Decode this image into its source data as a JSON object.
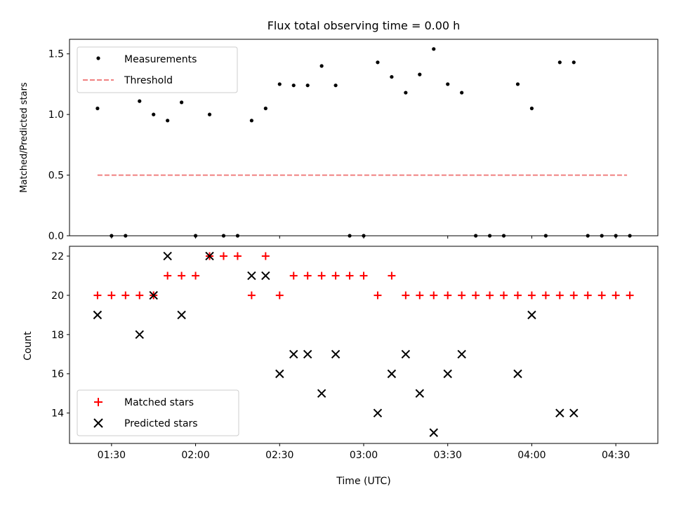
{
  "colors": {
    "measurement": "#000000",
    "threshold": "#f08080",
    "matched": "#ff0000",
    "predicted": "#000000"
  },
  "chart_data": [
    {
      "type": "scatter",
      "title": "Flux total observing time = 0.00 h",
      "xlabel": "",
      "ylabel": "Matched/Predicted stars",
      "ylim": [
        0,
        1.62
      ],
      "xlim_minutes": [
        75,
        285
      ],
      "yticks": [
        0.0,
        0.5,
        1.0,
        1.5
      ],
      "ytick_labels": [
        "0.0",
        "0.5",
        "1.0",
        "1.5"
      ],
      "legend": {
        "placement": "top-left",
        "entries": [
          "Measurements",
          "Threshold"
        ]
      },
      "series": [
        {
          "name": "Measurements",
          "style": "dot",
          "x": [
            "01:25",
            "01:30",
            "01:35",
            "01:40",
            "01:45",
            "01:50",
            "01:55",
            "02:00",
            "02:05",
            "02:10",
            "02:15",
            "02:20",
            "02:25",
            "02:30",
            "02:35",
            "02:40",
            "02:45",
            "02:50",
            "02:55",
            "03:00",
            "03:05",
            "03:10",
            "03:15",
            "03:20",
            "03:25",
            "03:30",
            "03:35",
            "03:40",
            "03:45",
            "03:50",
            "03:55",
            "04:00",
            "04:05",
            "04:10",
            "04:15",
            "04:20",
            "04:25",
            "04:30",
            "04:35"
          ],
          "y": [
            1.05,
            0,
            0,
            1.11,
            1.0,
            0.95,
            1.1,
            0,
            1.0,
            0,
            0,
            0.95,
            1.05,
            1.25,
            1.24,
            1.24,
            1.4,
            1.24,
            0,
            0,
            1.43,
            1.31,
            1.18,
            1.33,
            1.54,
            1.25,
            1.18,
            0,
            0,
            0,
            1.25,
            1.05,
            0,
            1.43,
            1.43,
            0,
            0,
            0,
            0
          ]
        },
        {
          "name": "Threshold",
          "style": "dashed-line",
          "x": [
            "01:25",
            "04:34"
          ],
          "y": [
            0.5,
            0.5
          ]
        }
      ]
    },
    {
      "type": "scatter",
      "title": "",
      "xlabel": "Time (UTC)",
      "ylabel": "Count",
      "ylim": [
        12.45,
        22.5
      ],
      "xlim_minutes": [
        75,
        285
      ],
      "yticks": [
        14,
        16,
        18,
        20,
        22
      ],
      "ytick_labels": [
        "14",
        "16",
        "18",
        "20",
        "22"
      ],
      "xticks_minutes": [
        90,
        120,
        150,
        180,
        210,
        240,
        270
      ],
      "xtick_labels": [
        "01:30",
        "02:00",
        "02:30",
        "03:00",
        "03:30",
        "04:00",
        "04:30"
      ],
      "legend": {
        "placement": "bottom-left",
        "entries": [
          "Matched stars",
          "Predicted stars"
        ]
      },
      "series": [
        {
          "name": "Matched stars",
          "style": "plus",
          "x": [
            "01:25",
            "01:30",
            "01:35",
            "01:40",
            "01:45",
            "01:50",
            "01:55",
            "02:00",
            "02:05",
            "02:10",
            "02:15",
            "02:20",
            "02:25",
            "02:30",
            "02:35",
            "02:40",
            "02:45",
            "02:50",
            "02:55",
            "03:00",
            "03:05",
            "03:10",
            "03:15",
            "03:20",
            "03:25",
            "03:30",
            "03:35",
            "03:40",
            "03:45",
            "03:50",
            "03:55",
            "04:00",
            "04:05",
            "04:10",
            "04:15",
            "04:20",
            "04:25",
            "04:30",
            "04:35"
          ],
          "y": [
            20,
            20,
            20,
            20,
            20,
            21,
            21,
            21,
            22,
            22,
            22,
            20,
            22,
            20,
            21,
            21,
            21,
            21,
            21,
            21,
            20,
            21,
            20,
            20,
            20,
            20,
            20,
            20,
            20,
            20,
            20,
            20,
            20,
            20,
            20,
            20,
            20,
            20,
            20
          ]
        },
        {
          "name": "Predicted stars",
          "style": "x",
          "x": [
            "01:25",
            "01:40",
            "01:45",
            "01:50",
            "01:55",
            "02:05",
            "02:20",
            "02:25",
            "02:30",
            "02:35",
            "02:40",
            "02:45",
            "02:50",
            "03:05",
            "03:10",
            "03:15",
            "03:20",
            "03:25",
            "03:30",
            "03:35",
            "03:55",
            "04:00",
            "04:10",
            "04:15"
          ],
          "y": [
            19,
            18,
            20,
            22,
            19,
            22,
            21,
            21,
            16,
            17,
            17,
            15,
            17,
            14,
            16,
            17,
            15,
            13,
            16,
            17,
            16,
            19,
            14,
            14
          ]
        }
      ]
    }
  ]
}
